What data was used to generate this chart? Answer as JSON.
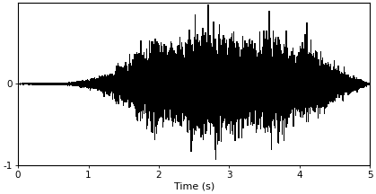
{
  "title": "",
  "xlabel": "Time (s)",
  "ylabel": "",
  "xlim": [
    0,
    5
  ],
  "ylim": [
    -1,
    1
  ],
  "xticks": [
    0,
    1,
    2,
    3,
    4,
    5
  ],
  "yticks": [
    -1,
    0
  ],
  "ytick_labels": [
    "-1",
    "0"
  ],
  "waveform_color": "#000000",
  "background_color": "#ffffff",
  "sample_rate": 8000,
  "duration": 5.0,
  "seed": 42,
  "xlabel_fontsize": 8,
  "tick_fontsize": 7.5,
  "line_width": 0.35
}
